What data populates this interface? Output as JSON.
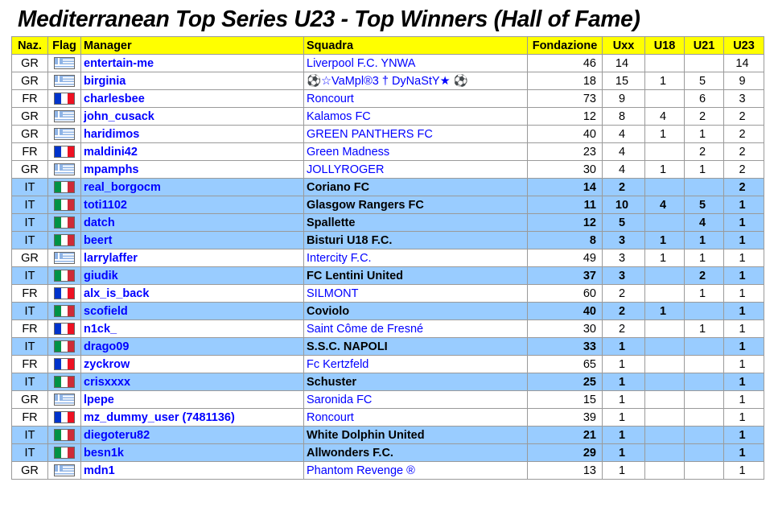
{
  "title": "Mediterranean Top Series U23 - Top Winners (Hall of Fame)",
  "headers": {
    "naz": "Naz.",
    "flag": "Flag",
    "manager": "Manager",
    "squadra": "Squadra",
    "fondazione": "Fondazione",
    "uxx": "Uxx",
    "u18": "U18",
    "u21": "U21",
    "u23": "U23"
  },
  "rows": [
    {
      "naz": "GR",
      "flag_icon": "greece-flag-icon",
      "manager": "entertain-me",
      "squadra": "Liverpool F.C. YNWA",
      "fondazione": "46",
      "uxx": "14",
      "u18": "",
      "u21": "",
      "u23": "14"
    },
    {
      "naz": "GR",
      "flag_icon": "greece-flag-icon",
      "manager": "birginia",
      "squadra": "⚽☆VaMpl®3 † DyNaStY★ ⚽",
      "fondazione": "18",
      "uxx": "15",
      "u18": "1",
      "u21": "5",
      "u23": "9"
    },
    {
      "naz": "FR",
      "flag_icon": "france-flag-icon",
      "manager": "charlesbee",
      "squadra": "Roncourt",
      "fondazione": "73",
      "uxx": "9",
      "u18": "",
      "u21": "6",
      "u23": "3"
    },
    {
      "naz": "GR",
      "flag_icon": "greece-flag-icon",
      "manager": "john_cusack",
      "squadra": "Kalamos FC",
      "fondazione": "12",
      "uxx": "8",
      "u18": "4",
      "u21": "2",
      "u23": "2"
    },
    {
      "naz": "GR",
      "flag_icon": "greece-flag-icon",
      "manager": "haridimos",
      "squadra": "GREEN PANTHERS FC",
      "fondazione": "40",
      "uxx": "4",
      "u18": "1",
      "u21": "1",
      "u23": "2"
    },
    {
      "naz": "FR",
      "flag_icon": "france-flag-icon",
      "manager": "maldini42",
      "squadra": "Green Madness",
      "fondazione": "23",
      "uxx": "4",
      "u18": "",
      "u21": "2",
      "u23": "2"
    },
    {
      "naz": "GR",
      "flag_icon": "greece-flag-icon",
      "manager": "mpamphs",
      "squadra": "JOLLYROGER",
      "fondazione": "30",
      "uxx": "4",
      "u18": "1",
      "u21": "1",
      "u23": "2"
    },
    {
      "naz": "IT",
      "flag_icon": "italy-flag-icon",
      "manager": "real_borgocm",
      "squadra": "Coriano FC",
      "fondazione": "14",
      "uxx": "2",
      "u18": "",
      "u21": "",
      "u23": "2"
    },
    {
      "naz": "IT",
      "flag_icon": "italy-flag-icon",
      "manager": "toti1102",
      "squadra": "Glasgow Rangers FC",
      "fondazione": "11",
      "uxx": "10",
      "u18": "4",
      "u21": "5",
      "u23": "1"
    },
    {
      "naz": "IT",
      "flag_icon": "italy-flag-icon",
      "manager": "datch",
      "squadra": "Spallette",
      "fondazione": "12",
      "uxx": "5",
      "u18": "",
      "u21": "4",
      "u23": "1"
    },
    {
      "naz": "IT",
      "flag_icon": "italy-flag-icon",
      "manager": "beert",
      "squadra": "Bisturi U18 F.C.",
      "fondazione": "8",
      "uxx": "3",
      "u18": "1",
      "u21": "1",
      "u23": "1"
    },
    {
      "naz": "GR",
      "flag_icon": "greece-flag-icon",
      "manager": "larrylaffer",
      "squadra": "Intercity F.C.",
      "fondazione": "49",
      "uxx": "3",
      "u18": "1",
      "u21": "1",
      "u23": "1"
    },
    {
      "naz": "IT",
      "flag_icon": "italy-flag-icon",
      "manager": "giudik",
      "squadra": "FC Lentini United",
      "fondazione": "37",
      "uxx": "3",
      "u18": "",
      "u21": "2",
      "u23": "1"
    },
    {
      "naz": "FR",
      "flag_icon": "france-flag-icon",
      "manager": "alx_is_back",
      "squadra": "SILMONT",
      "fondazione": "60",
      "uxx": "2",
      "u18": "",
      "u21": "1",
      "u23": "1"
    },
    {
      "naz": "IT",
      "flag_icon": "italy-flag-icon",
      "manager": "scofield",
      "squadra": "Coviolo",
      "fondazione": "40",
      "uxx": "2",
      "u18": "1",
      "u21": "",
      "u23": "1"
    },
    {
      "naz": "FR",
      "flag_icon": "france-flag-icon",
      "manager": "n1ck_",
      "squadra": "Saint Côme de Fresné",
      "fondazione": "30",
      "uxx": "2",
      "u18": "",
      "u21": "1",
      "u23": "1"
    },
    {
      "naz": "IT",
      "flag_icon": "italy-flag-icon",
      "manager": "drago09",
      "squadra": "S.S.C. NAPOLI",
      "fondazione": "33",
      "uxx": "1",
      "u18": "",
      "u21": "",
      "u23": "1"
    },
    {
      "naz": "FR",
      "flag_icon": "france-flag-icon",
      "manager": "zyckrow",
      "squadra": "Fc Kertzfeld",
      "fondazione": "65",
      "uxx": "1",
      "u18": "",
      "u21": "",
      "u23": "1"
    },
    {
      "naz": "IT",
      "flag_icon": "italy-flag-icon",
      "manager": "crisxxxx",
      "squadra": "Schuster",
      "fondazione": "25",
      "uxx": "1",
      "u18": "",
      "u21": "",
      "u23": "1"
    },
    {
      "naz": "GR",
      "flag_icon": "greece-flag-icon",
      "manager": "lpepe",
      "squadra": "Saronida FC",
      "fondazione": "15",
      "uxx": "1",
      "u18": "",
      "u21": "",
      "u23": "1"
    },
    {
      "naz": "FR",
      "flag_icon": "france-flag-icon",
      "manager": "mz_dummy_user (7481136)",
      "squadra": "Roncourt",
      "fondazione": "39",
      "uxx": "1",
      "u18": "",
      "u21": "",
      "u23": "1"
    },
    {
      "naz": "IT",
      "flag_icon": "italy-flag-icon",
      "manager": "diegoteru82",
      "squadra": "White Dolphin United",
      "fondazione": "21",
      "uxx": "1",
      "u18": "",
      "u21": "",
      "u23": "1"
    },
    {
      "naz": "IT",
      "flag_icon": "italy-flag-icon",
      "manager": "besn1k",
      "squadra": "Allwonders F.C.",
      "fondazione": "29",
      "uxx": "1",
      "u18": "",
      "u21": "",
      "u23": "1"
    },
    {
      "naz": "GR",
      "flag_icon": "greece-flag-icon",
      "manager": "mdn1",
      "squadra": "Phantom Revenge ®",
      "fondazione": "13",
      "uxx": "1",
      "u18": "",
      "u21": "",
      "u23": "1"
    }
  ],
  "colors": {
    "header_bg": "#ffff00",
    "italy_row_bg": "#99ccff",
    "link_text": "#0000ff"
  }
}
